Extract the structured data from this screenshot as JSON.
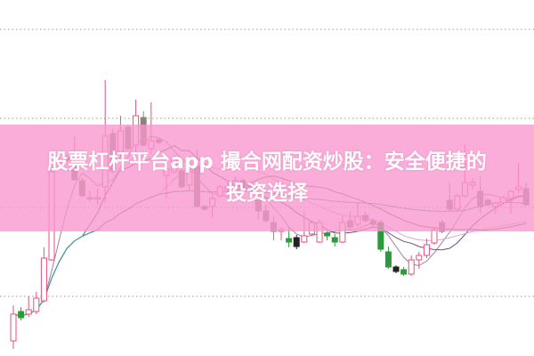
{
  "banner": {
    "line1": "股票杠杆平台app 撮合网配资炒股：安全便捷的",
    "line2": "投资选择",
    "color": "#f896cd"
  },
  "chart_data": {
    "type": "candlestick",
    "title": "",
    "grid": "dotted horizontal",
    "colors": {
      "up": "#e8507a",
      "down": "#8c847c",
      "green": "#2b9a3c",
      "purple": "#9b6fa0",
      "dark": "#222222"
    },
    "moving_averages": [
      {
        "window": 5,
        "color": "#a07fa8"
      },
      {
        "window": 10,
        "color": "#6e4e7e"
      },
      {
        "window": 20,
        "color": "#eaa0d6"
      },
      {
        "window": 30,
        "color": "#4a7a3a"
      },
      {
        "window": 60,
        "color": "#3aa0a8"
      }
    ],
    "candles": [
      [
        1.7,
        4.7,
        5.7,
        0.8,
        "u"
      ],
      [
        5.0,
        4.3,
        5.5,
        4.0,
        "g"
      ],
      [
        4.7,
        5.2,
        6.7,
        4.4,
        "u"
      ],
      [
        5.0,
        6.5,
        7.2,
        4.7,
        "u"
      ],
      [
        6.2,
        11.0,
        12.2,
        6.0,
        "u"
      ],
      [
        10.8,
        20.7,
        21.3,
        10.7,
        "u"
      ],
      [
        21.8,
        22.0,
        22.5,
        21.5,
        "p"
      ],
      [
        22.0,
        22.3,
        22.6,
        21.8,
        "p"
      ],
      [
        21.5,
        19.8,
        24.7,
        19.7,
        "d"
      ],
      [
        19.7,
        18.0,
        20.0,
        17.8,
        "d"
      ],
      [
        17.8,
        17.7,
        18.5,
        17.3,
        "u"
      ],
      [
        17.8,
        17.7,
        18.8,
        17.0,
        "u"
      ],
      [
        19.0,
        24.7,
        31.0,
        17.3,
        "u"
      ],
      [
        25.0,
        20.8,
        25.5,
        20.5,
        "d"
      ],
      [
        22.7,
        25.3,
        27.0,
        22.0,
        "u"
      ],
      [
        25.7,
        23.3,
        26.0,
        23.0,
        "d"
      ],
      [
        23.7,
        27.0,
        28.8,
        22.7,
        "u"
      ],
      [
        26.8,
        23.7,
        27.5,
        23.5,
        "d"
      ],
      [
        23.3,
        24.2,
        28.5,
        22.7,
        "u"
      ],
      [
        24.0,
        24.3,
        24.5,
        23.8,
        "p"
      ],
      [
        20.3,
        21.0,
        22.5,
        17.7,
        "u"
      ],
      [
        20.7,
        22.2,
        22.5,
        20.5,
        "u"
      ],
      [
        20.8,
        19.0,
        21.0,
        18.8,
        "d"
      ],
      [
        19.2,
        20.7,
        21.7,
        18.7,
        "u"
      ],
      [
        21.3,
        16.8,
        23.2,
        16.7,
        "d"
      ],
      [
        16.5,
        16.8,
        17.0,
        16.3,
        "p"
      ],
      [
        16.8,
        17.7,
        18.0,
        15.5,
        "u"
      ],
      [
        18.0,
        19.0,
        19.2,
        17.8,
        "u"
      ],
      [
        18.7,
        19.0,
        19.5,
        18.5,
        "u"
      ],
      [
        19.2,
        19.7,
        20.2,
        18.7,
        "u"
      ],
      [
        19.7,
        18.7,
        20.0,
        18.5,
        "d"
      ],
      [
        19.3,
        19.0,
        19.5,
        18.8,
        "p"
      ],
      [
        17.5,
        16.3,
        19.0,
        15.3,
        "d"
      ],
      [
        16.3,
        15.2,
        17.0,
        15.0,
        "d"
      ],
      [
        15.0,
        14.0,
        15.7,
        13.0,
        "d"
      ],
      [
        14.0,
        14.2,
        14.5,
        13.0,
        "u"
      ],
      [
        13.2,
        12.8,
        14.5,
        12.2,
        "g"
      ],
      [
        13.3,
        12.3,
        13.6,
        12.0,
        "k"
      ],
      [
        12.8,
        13.5,
        16.3,
        12.7,
        "u"
      ],
      [
        13.7,
        15.0,
        15.2,
        13.5,
        "u"
      ],
      [
        12.8,
        15.0,
        15.3,
        12.7,
        "u"
      ],
      [
        13.8,
        13.5,
        14.0,
        13.0,
        "g"
      ],
      [
        13.3,
        12.8,
        13.7,
        12.3,
        "g"
      ],
      [
        12.8,
        15.0,
        15.7,
        12.7,
        "u"
      ],
      [
        15.2,
        14.5,
        16.3,
        14.3,
        "d"
      ],
      [
        14.8,
        15.7,
        17.2,
        14.5,
        "u"
      ],
      [
        15.8,
        15.2,
        16.2,
        15.0,
        "d"
      ],
      [
        15.2,
        14.8,
        15.5,
        14.5,
        "d"
      ],
      [
        15.0,
        12.0,
        15.3,
        11.7,
        "g"
      ],
      [
        11.7,
        10.0,
        12.3,
        9.8,
        "g"
      ],
      [
        10.0,
        9.5,
        10.2,
        9.3,
        "k"
      ],
      [
        9.7,
        9.2,
        10.0,
        9.0,
        "g"
      ],
      [
        9.2,
        10.8,
        11.3,
        9.0,
        "u"
      ],
      [
        10.8,
        11.3,
        11.7,
        9.8,
        "u"
      ],
      [
        11.3,
        12.5,
        13.2,
        11.0,
        "u"
      ],
      [
        12.7,
        14.2,
        14.5,
        12.5,
        "u"
      ],
      [
        14.0,
        15.0,
        15.3,
        13.8,
        "p"
      ],
      [
        17.5,
        16.5,
        19.5,
        16.3,
        "d"
      ],
      [
        16.5,
        18.0,
        18.2,
        16.3,
        "u"
      ],
      [
        18.0,
        19.5,
        23.8,
        17.8,
        "u"
      ],
      [
        19.2,
        19.5,
        20.0,
        18.7,
        "u"
      ],
      [
        18.5,
        16.8,
        20.2,
        16.0,
        "d"
      ],
      [
        17.5,
        17.0,
        17.7,
        16.8,
        "p"
      ],
      [
        16.8,
        17.2,
        17.3,
        16.0,
        "u"
      ],
      [
        17.2,
        17.8,
        18.0,
        17.0,
        "u"
      ],
      [
        17.7,
        18.5,
        18.7,
        16.0,
        "u"
      ],
      [
        18.7,
        19.0,
        21.7,
        18.3,
        "u"
      ],
      [
        18.8,
        17.0,
        19.5,
        16.8,
        "d"
      ]
    ]
  }
}
